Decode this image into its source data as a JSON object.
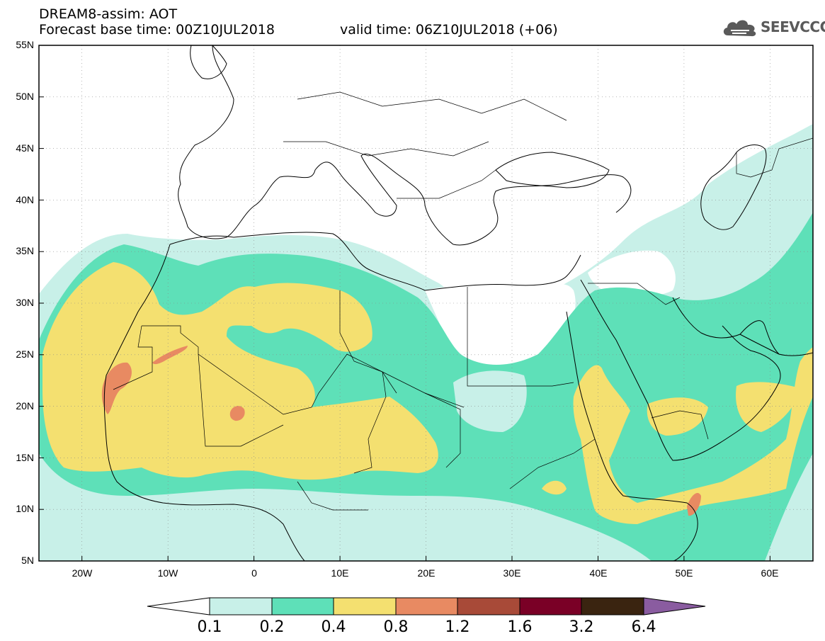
{
  "title": {
    "line1": "DREAM8-assim: AOT",
    "line2": "Forecast base time: 00Z10JUL2018",
    "valid": "valid time: 06Z10JUL2018 (+06)"
  },
  "logo": {
    "text": "SEEVCCC",
    "icon": "cloud-icon"
  },
  "map": {
    "lon_range": [
      -25,
      65
    ],
    "lat_range": [
      5,
      55
    ],
    "lat_labels": [
      "55N",
      "50N",
      "45N",
      "40N",
      "35N",
      "30N",
      "25N",
      "20N",
      "15N",
      "10N",
      "5N"
    ],
    "lon_labels": [
      "20W",
      "10W",
      "0",
      "10E",
      "20E",
      "30E",
      "40E",
      "50E",
      "60E"
    ],
    "field": "AOT"
  },
  "colorbar": {
    "labels": [
      "0.1",
      "0.2",
      "0.4",
      "0.8",
      "1.2",
      "1.6",
      "3.2",
      "6.4"
    ],
    "colors": [
      "#ffffff",
      "#c8f0e8",
      "#5ee0b8",
      "#f4e070",
      "#e88a62",
      "#a84a38",
      "#7a0026",
      "#3a2410",
      "#8a5ca0"
    ]
  },
  "colors": {
    "c01": "#c8f0e8",
    "c02": "#5ee0b8",
    "c04": "#f4e070",
    "c08": "#e88a62",
    "c12": "#a84a38"
  }
}
